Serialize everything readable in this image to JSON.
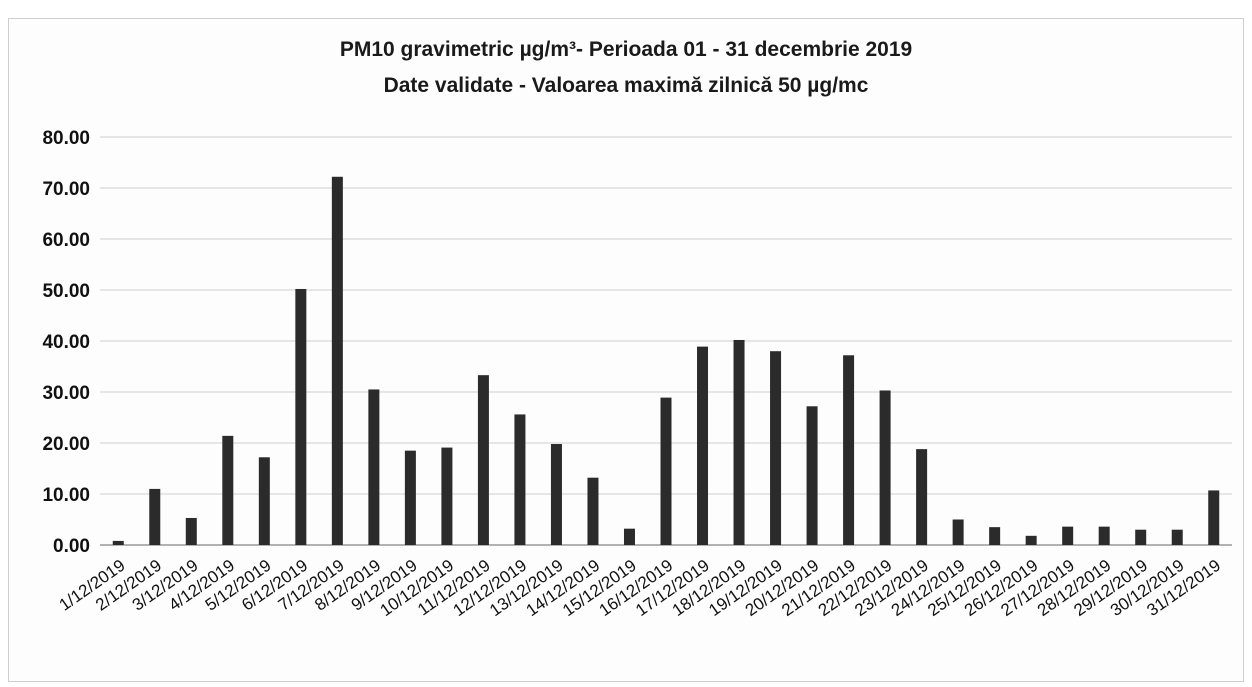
{
  "chart_data": {
    "type": "bar",
    "title": "PM10 gravimetric µg/m³- Perioada 01 - 31 decembrie 2019",
    "subtitle": "Date validate -  Valoarea maximă zilnică 50 µg/mc",
    "xlabel": "",
    "ylabel": "",
    "ylim": [
      0,
      80
    ],
    "yticks": [
      "0.00",
      "10.00",
      "20.00",
      "30.00",
      "40.00",
      "50.00",
      "60.00",
      "70.00",
      "80.00"
    ],
    "grid": true,
    "legend": "none",
    "categories": [
      "1/12/2019",
      "2/12/2019",
      "3/12/2019",
      "4/12/2019",
      "5/12/2019",
      "6/12/2019",
      "7/12/2019",
      "8/12/2019",
      "9/12/2019",
      "10/12/2019",
      "11/12/2019",
      "12/12/2019",
      "13/12/2019",
      "14/12/2019",
      "15/12/2019",
      "16/12/2019",
      "17/12/2019",
      "18/12/2019",
      "19/12/2019",
      "20/12/2019",
      "21/12/2019",
      "22/12/2019",
      "23/12/2019",
      "24/12/2019",
      "25/12/2019",
      "26/12/2019",
      "27/12/2019",
      "28/12/2019",
      "29/12/2019",
      "30/12/2019",
      "31/12/2019"
    ],
    "values": [
      0.8,
      11.0,
      5.3,
      21.4,
      17.2,
      50.2,
      72.2,
      30.5,
      18.5,
      19.1,
      33.3,
      25.6,
      19.8,
      13.2,
      3.2,
      28.9,
      38.9,
      40.2,
      38.0,
      27.2,
      37.2,
      30.3,
      18.8,
      5.0,
      3.5,
      1.8,
      3.6,
      3.6,
      3.0,
      3.0,
      10.7
    ],
    "colors": {
      "bar": "#2b2b2b",
      "grid": "#d0d0d0",
      "axis": "#9a9a9a"
    }
  }
}
